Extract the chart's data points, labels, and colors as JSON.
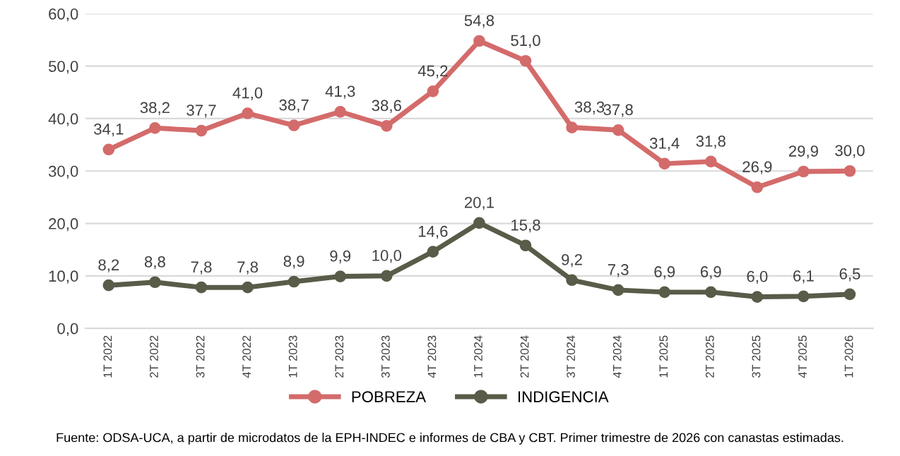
{
  "chart_data": {
    "type": "line",
    "categories": [
      "1T 2022",
      "2T 2022",
      "3T 2022",
      "4T 2022",
      "1T 2023",
      "2T 2023",
      "3T 2023",
      "4T 2023",
      "1T 2024",
      "2T 2024",
      "3T 2024",
      "4T 2024",
      "1T 2025",
      "2T 2025",
      "3T 2025",
      "4T 2025",
      "1T 2026"
    ],
    "series": [
      {
        "name": "POBREZA",
        "color": "#d46b6b",
        "values": [
          34.1,
          38.2,
          37.7,
          41.0,
          38.7,
          41.3,
          38.6,
          45.2,
          54.8,
          51.0,
          38.3,
          37.8,
          31.4,
          31.8,
          26.9,
          29.9,
          30.0
        ],
        "value_labels": [
          "34,1",
          "38,2",
          "37,7",
          "41,0",
          "38,7",
          "41,3",
          "38,6",
          "45,2",
          "54,8",
          "51,0",
          "38,3",
          "37,8",
          "31,4",
          "31,8",
          "26,9",
          "29,9",
          "30,0"
        ]
      },
      {
        "name": "INDIGENCIA",
        "color": "#585c48",
        "values": [
          8.2,
          8.8,
          7.8,
          7.8,
          8.9,
          9.9,
          10.0,
          14.6,
          20.1,
          15.8,
          9.2,
          7.3,
          6.9,
          6.9,
          6.0,
          6.1,
          6.5
        ],
        "value_labels": [
          "8,2",
          "8,8",
          "7,8",
          "7,8",
          "8,9",
          "9,9",
          "10,0",
          "14,6",
          "20,1",
          "15,8",
          "9,2",
          "7,3",
          "6,9",
          "6,9",
          "6,0",
          "6,1",
          "6,5"
        ]
      }
    ],
    "ylim": [
      0,
      60
    ],
    "yticks": [
      {
        "value": 0,
        "label": "0,0"
      },
      {
        "value": 10,
        "label": "10,0"
      },
      {
        "value": 20,
        "label": "20,0"
      },
      {
        "value": 30,
        "label": "30,0"
      },
      {
        "value": 40,
        "label": "40,0"
      },
      {
        "value": 50,
        "label": "50,0"
      },
      {
        "value": 60,
        "label": "60,0"
      }
    ],
    "grid": "y",
    "legend": "bottom",
    "marker": "circle",
    "line_style": "solid",
    "annotations": [
      "Fuente: ODSA-UCA, a partir de microdatos de la EPH-INDEC e informes de CBA y CBT. Primer trimestre de 2026 con canastas estimadas."
    ]
  }
}
